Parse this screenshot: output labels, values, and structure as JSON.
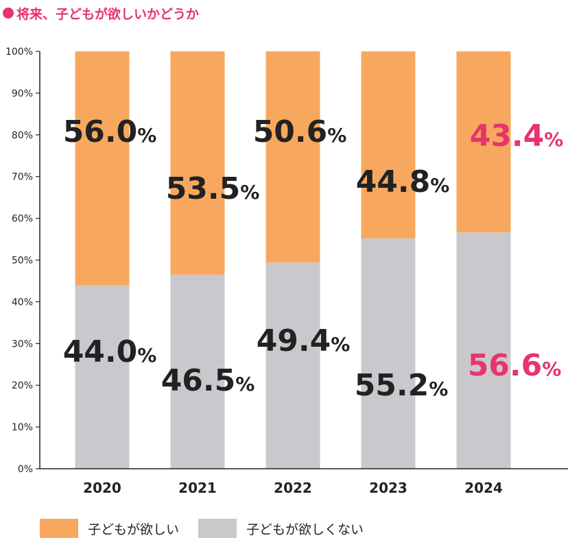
{
  "title": "将来、子どもが欲しいかどうか",
  "colors": {
    "want": "#f7a85e",
    "not_want": "#c9c8cc",
    "highlight": "#e8336c",
    "label": "#222222"
  },
  "chart_data": {
    "type": "bar",
    "stacked": true,
    "categories": [
      "2020",
      "2021",
      "2022",
      "2023",
      "2024"
    ],
    "series": [
      {
        "name": "子どもが欲しい",
        "values": [
          56.0,
          53.5,
          50.6,
          44.8,
          43.4
        ],
        "labels": [
          "56.0",
          "53.5",
          "50.6",
          "44.8",
          "43.4"
        ]
      },
      {
        "name": "子どもが欲しくない",
        "values": [
          44.0,
          46.5,
          49.4,
          55.2,
          56.6
        ],
        "labels": [
          "44.0",
          "46.5",
          "49.4",
          "55.2",
          "56.6"
        ]
      }
    ],
    "value_suffix": "%",
    "highlight_category": "2024",
    "yticks": [
      "0%",
      "10%",
      "20%",
      "30%",
      "40%",
      "50%",
      "60%",
      "70%",
      "80%",
      "90%",
      "100%"
    ],
    "ylim": [
      0,
      100
    ],
    "legend_position": "bottom-left",
    "grid": false
  }
}
